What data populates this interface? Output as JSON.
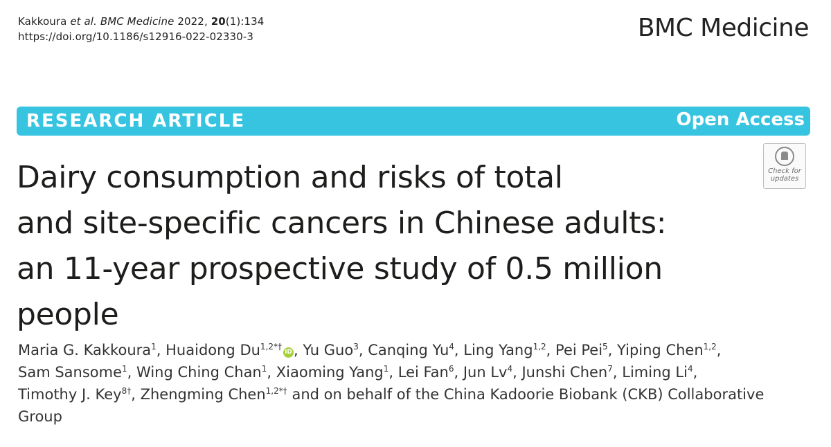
{
  "header": {
    "citation_authors": "Kakkoura",
    "citation_etal": "et al.",
    "citation_journal": "BMC Medicine",
    "citation_year": "2022,",
    "citation_volume": "20",
    "citation_issue_page": "(1):134",
    "doi": "https://doi.org/10.1186/s12916-022-02330-3",
    "journal_name": "BMC Medicine"
  },
  "banner": {
    "article_type": "RESEARCH ARTICLE",
    "access": "Open Access",
    "color": "#36c4e0"
  },
  "check_badge": {
    "line1": "Check for",
    "line2": "updates",
    "icon": "bookmark-icon"
  },
  "title": {
    "line1": "Dairy consumption and risks of total",
    "line2": "and site-specific cancers in Chinese adults:",
    "line3": "an 11-year prospective study of 0.5 million",
    "line4": "people"
  },
  "authors": [
    {
      "name": "Maria G. Kakkoura",
      "sup": "1"
    },
    {
      "name": "Huaidong Du",
      "sup": "1,2*†"
    },
    {
      "name": "Yu Guo",
      "sup": "3"
    },
    {
      "name": "Canqing Yu",
      "sup": "4"
    },
    {
      "name": "Ling Yang",
      "sup": "1,2"
    },
    {
      "name": "Pei Pei",
      "sup": "5"
    },
    {
      "name": "Yiping Chen",
      "sup": "1,2"
    },
    {
      "name": "Sam Sansome",
      "sup": "1"
    },
    {
      "name": "Wing Ching Chan",
      "sup": "1"
    },
    {
      "name": "Xiaoming Yang",
      "sup": "1"
    },
    {
      "name": "Lei Fan",
      "sup": "6"
    },
    {
      "name": "Jun Lv",
      "sup": "4"
    },
    {
      "name": "Junshi Chen",
      "sup": "7"
    },
    {
      "name": "Liming Li",
      "sup": "4"
    },
    {
      "name": "Timothy J. Key",
      "sup": "8†"
    },
    {
      "name": "Zhengming Chen",
      "sup": "1,2*†"
    }
  ],
  "authors_tail": "and on behalf of the China Kadoorie Biobank (CKB) Collaborative Group",
  "orcid_color": "#a6ce39"
}
